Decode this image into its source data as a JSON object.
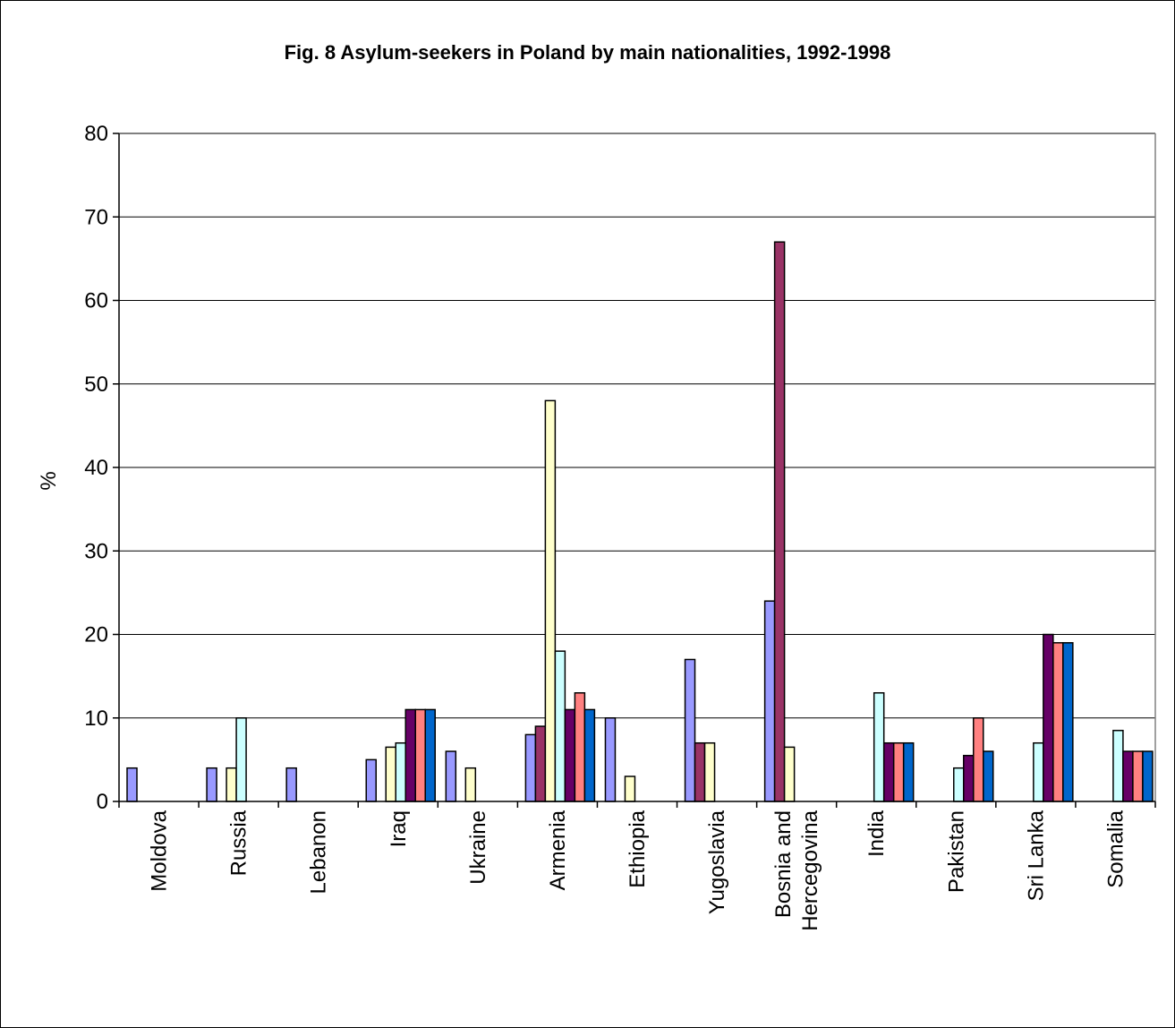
{
  "chart_data": {
    "type": "bar",
    "title": "Fig. 8 Asylum-seekers in Poland by main nationalities, 1992-1998",
    "xlabel": "",
    "ylabel": "%",
    "ylim": [
      0,
      80
    ],
    "yticks": [
      0,
      10,
      20,
      30,
      40,
      50,
      60,
      70,
      80
    ],
    "grid": true,
    "legend": "none",
    "categories": [
      "Moldova",
      "Russia",
      "Lebanon",
      "Iraq",
      "Ukraine",
      "Armenia",
      "Ethiopia",
      "Yugoslavia",
      "Bosnia and Hercegovina",
      "India",
      "Pakistan",
      "Sri Lanka",
      "Somalia"
    ],
    "series": [
      {
        "color": "#9999ff",
        "values": [
          4,
          4,
          4,
          5,
          6,
          8,
          10,
          17,
          24,
          0,
          0,
          0,
          0
        ]
      },
      {
        "color": "#993366",
        "values": [
          0,
          0,
          0,
          0,
          0,
          9,
          0,
          7,
          67,
          0,
          0,
          0,
          0
        ]
      },
      {
        "color": "#ffffcc",
        "values": [
          0,
          4,
          0,
          6.5,
          4,
          48,
          3,
          7,
          6.5,
          0,
          0,
          0,
          0
        ]
      },
      {
        "color": "#ccffff",
        "values": [
          0,
          10,
          0,
          7,
          0,
          18,
          0,
          0,
          0,
          13,
          4,
          7,
          8.5
        ]
      },
      {
        "color": "#660066",
        "values": [
          0,
          0,
          0,
          11,
          0,
          11,
          0,
          0,
          0,
          7,
          5.5,
          20,
          6
        ]
      },
      {
        "color": "#ff8080",
        "values": [
          0,
          0,
          0,
          11,
          0,
          13,
          0,
          0,
          0,
          7,
          10,
          19,
          6
        ]
      },
      {
        "color": "#0066cc",
        "values": [
          0,
          0,
          0,
          11,
          0,
          11,
          0,
          0,
          0,
          7,
          6,
          19,
          6
        ]
      }
    ]
  }
}
